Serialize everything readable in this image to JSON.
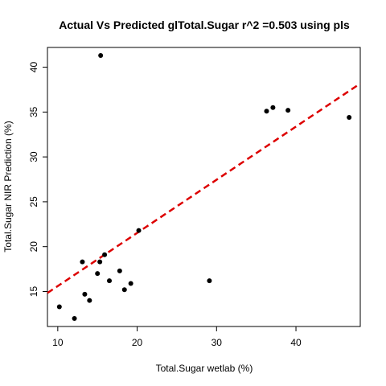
{
  "chart_data": {
    "type": "scatter",
    "title": "Actual Vs Predicted glTotal.Sugar r^2 =0.503 using pls",
    "xlabel": "Total.Sugar wetlab (%)",
    "ylabel": "Total.Sugar NIR Prediction (%)",
    "xlim": [
      8.7,
      48.1
    ],
    "ylim": [
      11.1,
      42.2
    ],
    "xticks": [
      10,
      20,
      30,
      40
    ],
    "yticks": [
      15,
      20,
      25,
      30,
      35,
      40
    ],
    "grid": false,
    "legend": "none",
    "points_x": [
      15.4,
      13.1,
      15.3,
      15.9,
      15.0,
      16.5,
      17.8,
      18.4,
      19.2,
      20.2,
      13.4,
      14.0,
      10.2,
      12.1,
      29.1,
      36.3,
      37.1,
      39.0,
      46.7
    ],
    "points_y": [
      41.3,
      18.3,
      18.3,
      19.1,
      17.0,
      16.2,
      17.3,
      15.2,
      15.9,
      21.8,
      14.7,
      14.0,
      13.3,
      12.0,
      16.2,
      35.1,
      35.5,
      35.2,
      34.4
    ],
    "fit_line": {
      "intercept": 9.68,
      "slope": 0.5925,
      "color": "#dd0000",
      "style": "dashed"
    },
    "point_color": "#000000"
  }
}
